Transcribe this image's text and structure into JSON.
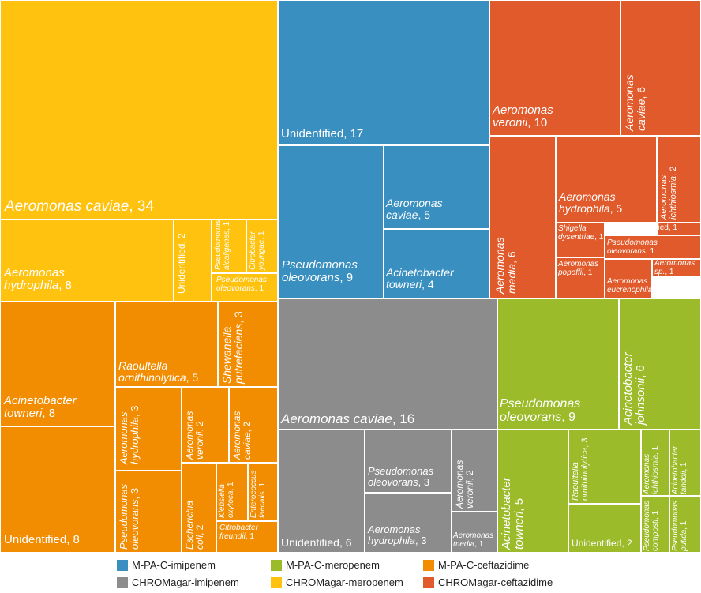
{
  "chart_data": {
    "type": "treemap",
    "title": "",
    "groups": [
      {
        "name": "CHROMagar-meropenem",
        "color": "#FFC20E",
        "items": [
          {
            "species": "Aeromonas caviae",
            "count": 34
          },
          {
            "species": "Aeromonas hydrophila",
            "count": 8
          },
          {
            "species": "Unidentified",
            "count": 2
          },
          {
            "species": "Pseudomonas alcaligenes",
            "count": 1
          },
          {
            "species": "Citrobacter youngae",
            "count": 1
          },
          {
            "species": "Pseudomonas oleovorans",
            "count": 1
          }
        ]
      },
      {
        "name": "M-PA-C-imipenem",
        "color": "#3A8FC1",
        "items": [
          {
            "species": "Unidentified",
            "count": 17
          },
          {
            "species": "Pseudomonas oleovorans",
            "count": 9
          },
          {
            "species": "Aeromonas caviae",
            "count": 5
          },
          {
            "species": "Acinetobacter towneri",
            "count": 4
          }
        ]
      },
      {
        "name": "CHROMagar-ceftazidime",
        "color": "#E05A2B",
        "items": [
          {
            "species": "Aeromonas veronii",
            "count": 10
          },
          {
            "species": "Aeromonas caviae",
            "count": 6
          },
          {
            "species": "Aeromonas media",
            "count": 6
          },
          {
            "species": "Aeromonas hydrophila",
            "count": 5
          },
          {
            "species": "Aeromonas ichthiosmia",
            "count": 2
          },
          {
            "species": "Unidentified",
            "count": 1
          },
          {
            "species": "Shigella dysentriae",
            "count": 1
          },
          {
            "species": "Pseudomonas oleovorans",
            "count": 1
          },
          {
            "species": "Aeromonas popoffii",
            "count": 1
          },
          {
            "species": "Aeromonas sp.",
            "count": 1
          },
          {
            "species": "Aeromonas eucrenophila",
            "count": 1
          }
        ]
      },
      {
        "name": "M-PA-C-ceftazidime",
        "color": "#F28C00",
        "items": [
          {
            "species": "Acinetobacter towneri",
            "count": 8
          },
          {
            "species": "Unidentified",
            "count": 8
          },
          {
            "species": "Raoultella ornithinolytica",
            "count": 5
          },
          {
            "species": "Shewanella putrefaciens",
            "count": 3
          },
          {
            "species": "Aeromonas hydrophila",
            "count": 3
          },
          {
            "species": "Pseudomonas oleovorans",
            "count": 3
          },
          {
            "species": "Aeromonas veronii",
            "count": 2
          },
          {
            "species": "Aeromonas caviae",
            "count": 2
          },
          {
            "species": "Escherichia coli",
            "count": 2
          },
          {
            "species": "Klebsiella oxytoca",
            "count": 1
          },
          {
            "species": "Enterococcus faecalis",
            "count": 1
          },
          {
            "species": "Citrobacter freundii",
            "count": 1
          }
        ]
      },
      {
        "name": "CHROMagar-imipenem",
        "color": "#8C8C8C",
        "items": [
          {
            "species": "Aeromonas caviae",
            "count": 16
          },
          {
            "species": "Unidentified",
            "count": 6
          },
          {
            "species": "Pseudomonas oleovorans",
            "count": 3
          },
          {
            "species": "Aeromonas hydrophila",
            "count": 3
          },
          {
            "species": "Aeromonas veronii",
            "count": 2
          },
          {
            "species": "Aeromonas media",
            "count": 1
          }
        ]
      },
      {
        "name": "M-PA-C-meropenem",
        "color": "#9BBB2A",
        "items": [
          {
            "species": "Pseudomonas oleovorans",
            "count": 9
          },
          {
            "species": "Acinetobacter johnsonii",
            "count": 6
          },
          {
            "species": "Acinetobacter towneri",
            "count": 5
          },
          {
            "species": "Raoultella ornithinolytica",
            "count": 3
          },
          {
            "species": "Unidentified",
            "count": 2
          },
          {
            "species": "Aeromonas ichthiosmia",
            "count": 1
          },
          {
            "species": "Acinetobacter tandoii",
            "count": 1
          },
          {
            "species": "Pseudomonas composti",
            "count": 1
          },
          {
            "species": "Pseudomonas putida",
            "count": 1
          }
        ]
      }
    ],
    "legend": [
      {
        "label": "M-PA-C-imipenem",
        "color": "#3A8FC1"
      },
      {
        "label": "M-PA-C-meropenem",
        "color": "#9BBB2A"
      },
      {
        "label": "M-PA-C-ceftazidime",
        "color": "#F28C00"
      },
      {
        "label": "CHROMagar-imipenem",
        "color": "#8C8C8C"
      },
      {
        "label": "CHROMagar-meropenem",
        "color": "#FFC20E"
      },
      {
        "label": "CHROMagar-ceftazidime",
        "color": "#E05A2B"
      }
    ]
  }
}
